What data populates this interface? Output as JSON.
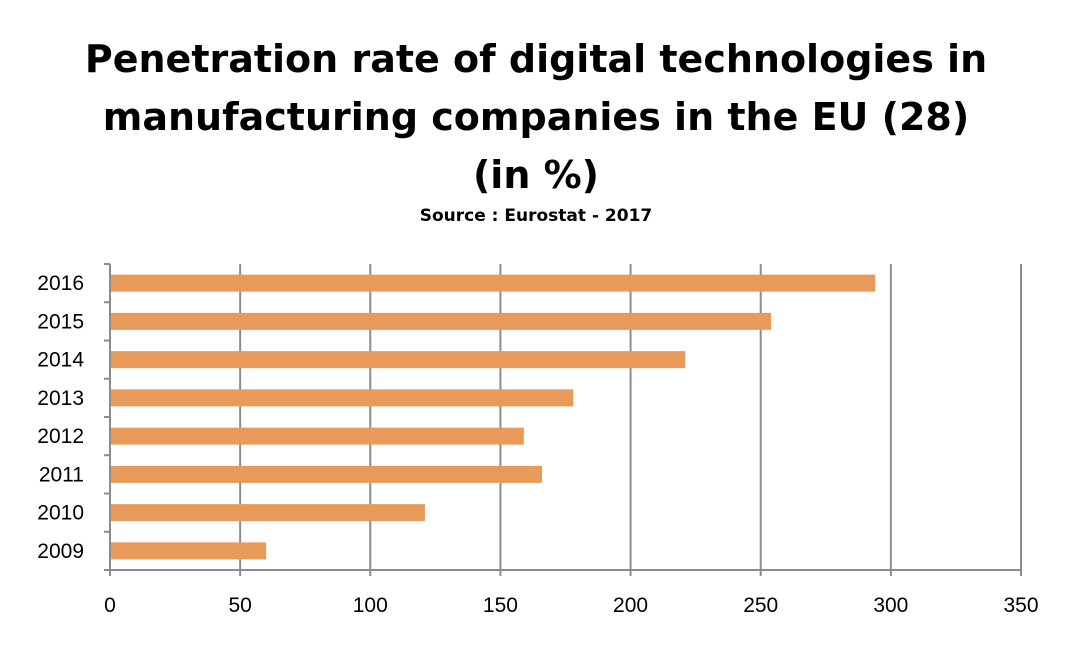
{
  "chart_data": {
    "type": "bar",
    "orientation": "horizontal",
    "title_lines": [
      "Penetration rate of digital technologies in",
      "manufacturing companies in the EU (28)",
      "(in %)"
    ],
    "subtitle": "Source : Eurostat - 2017",
    "categories": [
      "2016",
      "2015",
      "2014",
      "2013",
      "2012",
      "2011",
      "2010",
      "2009"
    ],
    "values": [
      294,
      254,
      221,
      178,
      159,
      166,
      121,
      60
    ],
    "xlim": [
      0,
      350
    ],
    "xticks": [
      "0",
      "50",
      "100",
      "150",
      "200",
      "250",
      "300",
      "350"
    ],
    "xtick_values": [
      0,
      50,
      100,
      150,
      200,
      250,
      300,
      350
    ],
    "grid": "vertical",
    "legend": "none",
    "bar_color": "#E89A5B",
    "grid_color": "#8C8C8C"
  }
}
